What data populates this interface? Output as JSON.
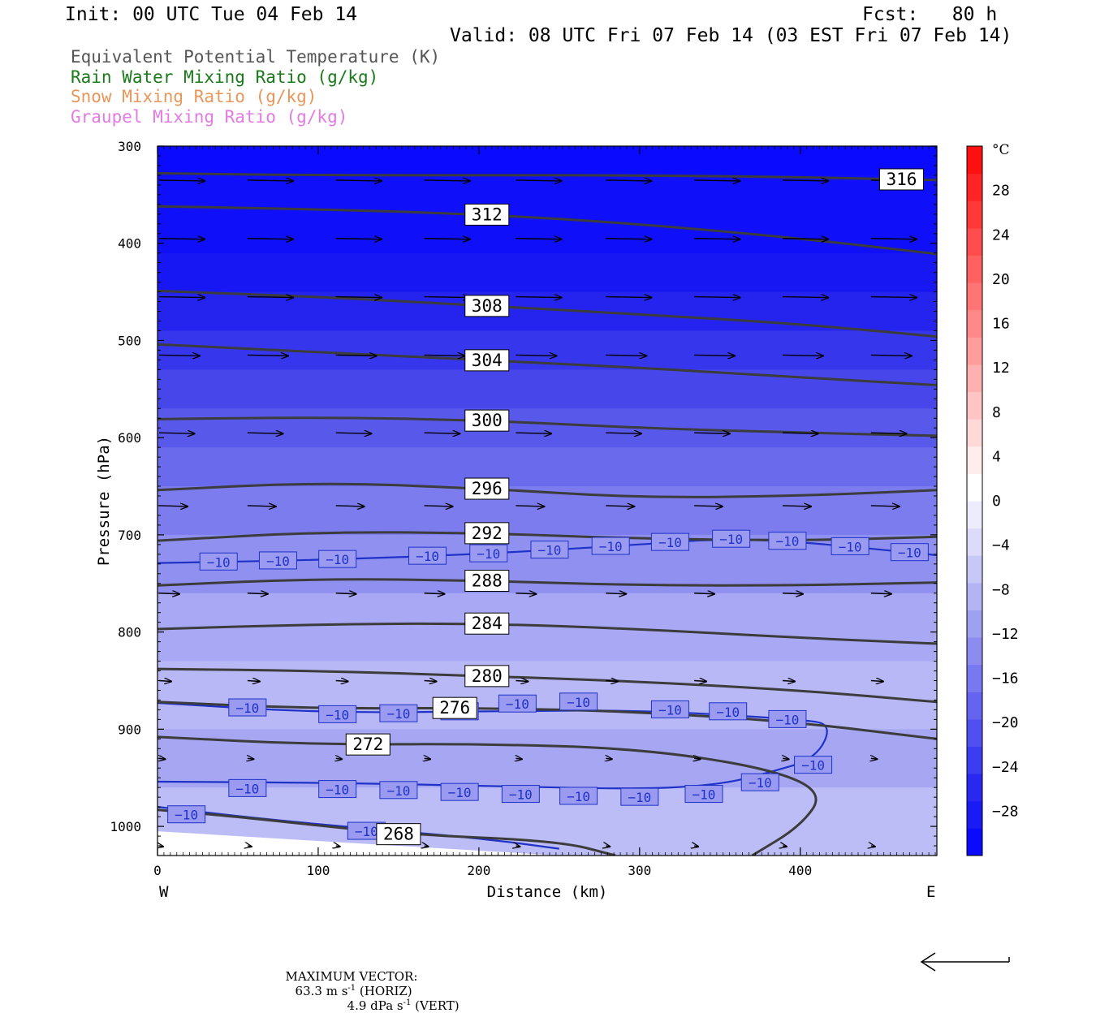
{
  "header": {
    "init": "Init: 00 UTC Tue 04 Feb 14",
    "fcst": "Fcst:   80 h",
    "valid": "Valid: 08 UTC Fri 07 Feb 14 (03 EST Fri 07 Feb 14)"
  },
  "legend": [
    {
      "label": "Equivalent Potential Temperature (K)",
      "color": "#555555"
    },
    {
      "label": "Rain Water Mixing Ratio (g/kg)",
      "color": "#1a7a1a"
    },
    {
      "label": "Snow Mixing Ratio (g/kg)",
      "color": "#e8965a"
    },
    {
      "label": "Graupel Mixing Ratio (g/kg)",
      "color": "#e47ae4"
    }
  ],
  "footer": {
    "max_vector_label": "MAXIMUM VECTOR:",
    "horiz_value": "63.3 m s",
    "horiz_exp": "-1",
    "horiz_suffix": " (HORIZ)",
    "vert_value": "4.9 dPa s",
    "vert_exp": "-1",
    "vert_suffix": " (VERT)"
  },
  "chart_data": {
    "type": "cross-section",
    "xlabel": "Distance (km)",
    "ylabel": "Pressure (hPa)",
    "x_left_label": "W",
    "x_right_label": "E",
    "xlim": [
      0,
      485
    ],
    "ylim": [
      1030,
      300
    ],
    "x_ticks": [
      0,
      100,
      200,
      300,
      400
    ],
    "y_ticks": [
      300,
      400,
      500,
      600,
      700,
      800,
      900,
      1000
    ],
    "colorbar": {
      "unit": "°C",
      "range": [
        -32,
        32
      ],
      "tick_labels": [
        "28",
        "24",
        "20",
        "16",
        "12",
        "8",
        "4",
        "0",
        "-4",
        "-8",
        "-12",
        "-16",
        "-20",
        "-24",
        "-28"
      ],
      "colors": [
        "#0a0aff",
        "#1a1af5",
        "#2828f0",
        "#3c3cf0",
        "#5050f0",
        "#6464f0",
        "#7878f0",
        "#8c8cf0",
        "#a0a0f2",
        "#b4b4f5",
        "#c8c8f8",
        "#dcdcfa",
        "#ececfc",
        "#ffffff",
        "#ffecec",
        "#ffd8d8",
        "#ffc4c4",
        "#ffb0b0",
        "#ff9c9c",
        "#ff8888",
        "#ff7474",
        "#ff6060",
        "#ff4c4c",
        "#ff3838",
        "#ff2424",
        "#ff1010"
      ]
    },
    "temperature_bands": [
      {
        "p_top": 300,
        "p_bottom": 330,
        "temp": -30,
        "color": "#0a0aff"
      },
      {
        "p_top": 330,
        "p_bottom": 410,
        "temp": -29,
        "color": "#0f0ffa"
      },
      {
        "p_top": 410,
        "p_bottom": 450,
        "temp": -28,
        "color": "#1717f3"
      },
      {
        "p_top": 450,
        "p_bottom": 490,
        "temp": -26,
        "color": "#2424ee"
      },
      {
        "p_top": 490,
        "p_bottom": 530,
        "temp": -24,
        "color": "#3636ec"
      },
      {
        "p_top": 530,
        "p_bottom": 570,
        "temp": -22,
        "color": "#4646ea"
      },
      {
        "p_top": 570,
        "p_bottom": 610,
        "temp": -20,
        "color": "#5858ea"
      },
      {
        "p_top": 610,
        "p_bottom": 650,
        "temp": -18,
        "color": "#6a6aec"
      },
      {
        "p_top": 650,
        "p_bottom": 700,
        "temp": -16,
        "color": "#7c7cee"
      },
      {
        "p_top": 700,
        "p_bottom": 760,
        "temp": -13,
        "color": "#9090f0"
      },
      {
        "p_top": 760,
        "p_bottom": 830,
        "temp": -11,
        "color": "#a8a8f4"
      },
      {
        "p_top": 830,
        "p_bottom": 900,
        "temp": -9,
        "color": "#b8b8f6"
      },
      {
        "p_top": 900,
        "p_bottom": 960,
        "temp": -11,
        "color": "#a6a6f2"
      },
      {
        "p_top": 960,
        "p_bottom": 1030,
        "temp": -9,
        "color": "#bcbcf7"
      }
    ],
    "theta_e_contours": [
      {
        "value": 316,
        "points": [
          [
            0,
            328
          ],
          [
            100,
            330
          ],
          [
            200,
            330
          ],
          [
            300,
            330
          ],
          [
            400,
            332
          ],
          [
            485,
            335
          ]
        ],
        "label_x": 463
      },
      {
        "value": 312,
        "points": [
          [
            0,
            362
          ],
          [
            100,
            365
          ],
          [
            200,
            370
          ],
          [
            300,
            380
          ],
          [
            400,
            395
          ],
          [
            485,
            411
          ]
        ],
        "label_x": 205
      },
      {
        "value": 308,
        "points": [
          [
            0,
            449
          ],
          [
            100,
            455
          ],
          [
            200,
            464
          ],
          [
            300,
            473
          ],
          [
            400,
            483
          ],
          [
            485,
            496
          ]
        ],
        "label_x": 205
      },
      {
        "value": 304,
        "points": [
          [
            0,
            504
          ],
          [
            100,
            512
          ],
          [
            200,
            520
          ],
          [
            300,
            528
          ],
          [
            400,
            538
          ],
          [
            485,
            546
          ]
        ],
        "label_x": 205
      },
      {
        "value": 300,
        "points": [
          [
            0,
            581
          ],
          [
            100,
            579
          ],
          [
            200,
            582
          ],
          [
            300,
            590
          ],
          [
            400,
            595
          ],
          [
            485,
            598
          ]
        ],
        "label_x": 205
      },
      {
        "value": 296,
        "points": [
          [
            0,
            654
          ],
          [
            100,
            646
          ],
          [
            200,
            652
          ],
          [
            300,
            662
          ],
          [
            400,
            660
          ],
          [
            485,
            654
          ]
        ],
        "label_x": 205
      },
      {
        "value": 292,
        "points": [
          [
            0,
            706
          ],
          [
            100,
            697
          ],
          [
            200,
            698
          ],
          [
            300,
            704
          ],
          [
            400,
            706
          ],
          [
            485,
            702
          ]
        ],
        "label_x": 205
      },
      {
        "value": 288,
        "points": [
          [
            0,
            752
          ],
          [
            100,
            745
          ],
          [
            200,
            747
          ],
          [
            300,
            752
          ],
          [
            400,
            752
          ],
          [
            485,
            749
          ]
        ],
        "label_x": 205
      },
      {
        "value": 284,
        "points": [
          [
            0,
            797
          ],
          [
            100,
            792
          ],
          [
            200,
            791
          ],
          [
            300,
            797
          ],
          [
            400,
            806
          ],
          [
            485,
            812
          ]
        ],
        "label_x": 205
      },
      {
        "value": 280,
        "points": [
          [
            0,
            838
          ],
          [
            100,
            840
          ],
          [
            200,
            845
          ],
          [
            300,
            851
          ],
          [
            400,
            860
          ],
          [
            485,
            872
          ]
        ],
        "label_x": 205
      },
      {
        "value": 276,
        "points": [
          [
            0,
            872
          ],
          [
            100,
            879
          ],
          [
            200,
            878
          ],
          [
            300,
            882
          ],
          [
            400,
            893
          ],
          [
            485,
            910
          ]
        ],
        "label_x": 185
      },
      {
        "value": 272,
        "points": [
          [
            0,
            908
          ],
          [
            100,
            916
          ],
          [
            200,
            915
          ],
          [
            300,
            920
          ],
          [
            380,
            940
          ],
          [
            415,
            965
          ],
          [
            400,
            1000
          ],
          [
            370,
            1030
          ]
        ],
        "label_x": 131
      },
      {
        "value": 268,
        "points": [
          [
            0,
            983
          ],
          [
            50,
            990
          ],
          [
            150,
            1008
          ],
          [
            250,
            1015
          ],
          [
            285,
            1030
          ]
        ],
        "label_x": 150
      }
    ],
    "temp_contours_minus10": [
      {
        "points": [
          [
            0,
            729
          ],
          [
            100,
            726
          ],
          [
            200,
            720
          ],
          [
            300,
            710
          ],
          [
            350,
            704
          ],
          [
            400,
            707
          ],
          [
            485,
            721
          ]
        ],
        "labels_x": [
          38,
          75,
          112,
          168,
          206,
          244,
          282,
          319,
          357,
          392,
          431,
          468
        ]
      },
      {
        "points": [
          [
            0,
            873
          ],
          [
            100,
            883
          ],
          [
            200,
            882
          ],
          [
            300,
            880
          ],
          [
            400,
            890
          ],
          [
            420,
            895
          ],
          [
            410,
            930
          ],
          [
            380,
            945
          ],
          [
            350,
            957
          ],
          [
            300,
            962
          ],
          [
            200,
            958
          ],
          [
            100,
            955
          ],
          [
            0,
            954
          ]
        ],
        "labels_x": [
          56,
          112,
          150,
          188,
          224,
          262,
          319,
          355,
          392,
          408,
          375,
          340,
          300,
          262,
          226,
          188,
          150,
          112,
          56
        ]
      },
      {
        "points": [
          [
            0,
            980
          ],
          [
            80,
            995
          ],
          [
            200,
            1012
          ],
          [
            250,
            1023
          ]
        ],
        "labels_x": [
          18,
          130
        ]
      }
    ],
    "wind_vectors_rows": [
      {
        "p": 335,
        "u": 45,
        "xs": [
          0,
          55,
          110,
          165,
          222,
          278,
          333,
          388,
          443
        ]
      },
      {
        "p": 395,
        "u": 45,
        "xs": [
          0,
          55,
          110,
          165,
          222,
          278,
          333,
          388,
          443
        ]
      },
      {
        "p": 455,
        "u": 45,
        "xs": [
          0,
          55,
          110,
          165,
          222,
          278,
          333,
          388,
          443
        ]
      },
      {
        "p": 515,
        "u": 40,
        "xs": [
          0,
          55,
          110,
          165,
          222,
          278,
          333,
          388,
          443
        ]
      },
      {
        "p": 595,
        "u": 35,
        "xs": [
          0,
          55,
          110,
          165,
          222,
          278,
          333,
          388,
          443
        ]
      },
      {
        "p": 670,
        "u": 28,
        "xs": [
          0,
          55,
          110,
          165,
          222,
          278,
          333,
          388,
          443
        ]
      },
      {
        "p": 760,
        "u": 20,
        "xs": [
          0,
          55,
          110,
          165,
          222,
          278,
          333,
          388,
          443
        ]
      },
      {
        "p": 850,
        "u": 12,
        "xs": [
          0,
          55,
          110,
          165,
          222,
          278,
          333,
          388,
          443
        ]
      },
      {
        "p": 930,
        "u": 6,
        "xs": [
          0,
          55,
          110,
          165,
          222,
          278,
          333,
          388,
          443
        ]
      },
      {
        "p": 1020,
        "u": 4,
        "xs": [
          0,
          55,
          110,
          165,
          222,
          278,
          333,
          388,
          443
        ]
      }
    ]
  }
}
